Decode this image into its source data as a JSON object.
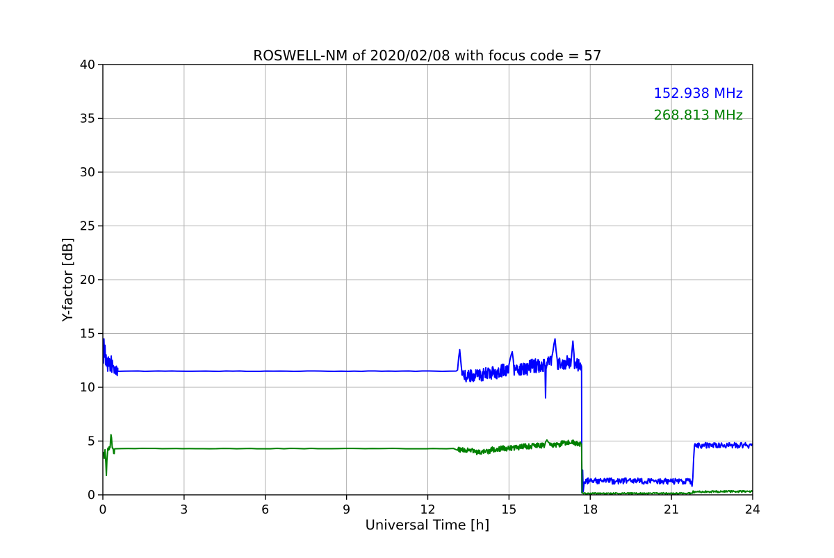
{
  "chart_data": {
    "type": "line",
    "title": "ROSWELL-NM of 2020/02/08 with focus code = 57",
    "xlabel": "Universal Time [h]",
    "ylabel": "Y-factor [dB]",
    "xlim": [
      0,
      24
    ],
    "ylim": [
      0,
      40
    ],
    "xticks": [
      0,
      3,
      6,
      9,
      12,
      15,
      18,
      21,
      24
    ],
    "yticks": [
      0,
      5,
      10,
      15,
      20,
      25,
      30,
      35,
      40
    ],
    "grid": true,
    "grid_color": "#b0b0b0",
    "axis_color": "#000000",
    "background_color": "#ffffff",
    "legend": {
      "position": "upper-right",
      "entries": [
        {
          "label": "152.938 MHz",
          "color": "#0000ff"
        },
        {
          "label": "268.813 MHz",
          "color": "#008000"
        }
      ]
    },
    "series": [
      {
        "name": "152.938 MHz",
        "color": "#0000ff",
        "seed": 12345,
        "line_width": 2,
        "segments": [
          {
            "points": [
              [
                0.02,
                12.2
              ],
              [
                0.04,
                14.5
              ],
              [
                0.06,
                12.8
              ],
              [
                0.08,
                13.9
              ],
              [
                0.1,
                12.1
              ],
              [
                0.12,
                13.0
              ]
            ]
          },
          {
            "x0": 0.12,
            "x1": 0.3,
            "y0": 12.3,
            "y1": 11.8,
            "noise": 0.75,
            "step": 0.01
          },
          {
            "points": [
              [
                0.31,
                12.9
              ],
              [
                0.33,
                11.4
              ],
              [
                0.35,
                12.5
              ]
            ]
          },
          {
            "x0": 0.36,
            "x1": 0.55,
            "y0": 11.8,
            "y1": 11.5,
            "noise": 0.45,
            "step": 0.01
          },
          {
            "x0": 0.55,
            "x1": 13.08,
            "y0": 11.5,
            "y1": 11.5,
            "noise": 0.02,
            "step": 0.25
          },
          {
            "points": [
              [
                13.1,
                11.6
              ],
              [
                13.14,
                12.7
              ],
              [
                13.18,
                13.5
              ],
              [
                13.22,
                12.4
              ],
              [
                13.26,
                11.4
              ]
            ]
          },
          {
            "x0": 13.26,
            "x1": 14.0,
            "y0": 11.0,
            "y1": 11.15,
            "noise": 0.55,
            "step": 0.012
          },
          {
            "x0": 14.0,
            "x1": 14.6,
            "y0": 11.2,
            "y1": 11.4,
            "noise": 0.6,
            "step": 0.012
          },
          {
            "x0": 14.6,
            "x1": 15.0,
            "y0": 11.5,
            "y1": 11.7,
            "noise": 0.6,
            "step": 0.012
          },
          {
            "points": [
              [
                15.04,
                12.6
              ],
              [
                15.08,
                13.0
              ],
              [
                15.12,
                13.3
              ],
              [
                15.16,
                12.5
              ]
            ]
          },
          {
            "x0": 15.18,
            "x1": 15.7,
            "y0": 11.6,
            "y1": 11.7,
            "noise": 0.6,
            "step": 0.012
          },
          {
            "x0": 15.7,
            "x1": 16.3,
            "y0": 11.9,
            "y1": 12.1,
            "noise": 0.65,
            "step": 0.012
          },
          {
            "points": [
              [
                16.33,
                11.9
              ],
              [
                16.35,
                9.0
              ],
              [
                16.37,
                12.0
              ]
            ]
          },
          {
            "x0": 16.38,
            "x1": 16.58,
            "y0": 12.2,
            "y1": 12.4,
            "noise": 0.6,
            "step": 0.012
          },
          {
            "points": [
              [
                16.62,
                13.3
              ],
              [
                16.66,
                14.0
              ],
              [
                16.7,
                14.5
              ],
              [
                16.74,
                13.4
              ],
              [
                16.78,
                12.6
              ]
            ]
          },
          {
            "x0": 16.8,
            "x1": 17.28,
            "y0": 12.2,
            "y1": 12.3,
            "noise": 0.65,
            "step": 0.012
          },
          {
            "points": [
              [
                17.32,
                13.2
              ],
              [
                17.36,
                14.3
              ],
              [
                17.4,
                13.1
              ]
            ]
          },
          {
            "x0": 17.42,
            "x1": 17.66,
            "y0": 12.2,
            "y1": 11.9,
            "noise": 0.6,
            "step": 0.012
          },
          {
            "points": [
              [
                17.68,
                11.9
              ],
              [
                17.69,
                0.2
              ],
              [
                17.72,
                2.3
              ],
              [
                17.74,
                0.3
              ],
              [
                17.78,
                1.2
              ]
            ]
          },
          {
            "x0": 17.8,
            "x1": 21.72,
            "y0": 1.3,
            "y1": 1.25,
            "noise": 0.28,
            "step": 0.02
          },
          {
            "points": [
              [
                21.74,
                1.1
              ],
              [
                21.76,
                0.8
              ],
              [
                21.79,
                1.6
              ],
              [
                21.82,
                3.4
              ],
              [
                21.85,
                4.6
              ]
            ]
          },
          {
            "x0": 21.87,
            "x1": 24.0,
            "y0": 4.6,
            "y1": 4.6,
            "noise": 0.26,
            "step": 0.02
          }
        ]
      },
      {
        "name": "268.813 MHz",
        "color": "#008000",
        "seed": 67890,
        "line_width": 2,
        "segments": [
          {
            "points": [
              [
                0.03,
                4.0
              ],
              [
                0.05,
                3.4
              ],
              [
                0.08,
                4.2
              ],
              [
                0.11,
                3.0
              ],
              [
                0.13,
                1.8
              ],
              [
                0.15,
                3.2
              ],
              [
                0.18,
                4.2
              ]
            ]
          },
          {
            "x0": 0.18,
            "x1": 0.27,
            "y0": 4.3,
            "y1": 4.4,
            "noise": 0.18,
            "step": 0.01
          },
          {
            "points": [
              [
                0.28,
                4.9
              ],
              [
                0.3,
                5.6
              ],
              [
                0.32,
                5.3
              ],
              [
                0.34,
                4.6
              ]
            ]
          },
          {
            "x0": 0.35,
            "x1": 0.43,
            "y0": 4.2,
            "y1": 4.0,
            "noise": 0.25,
            "step": 0.01
          },
          {
            "x0": 0.44,
            "x1": 13.08,
            "y0": 4.3,
            "y1": 4.3,
            "noise": 0.02,
            "step": 0.25
          },
          {
            "x0": 13.1,
            "x1": 13.8,
            "y0": 4.2,
            "y1": 4.1,
            "noise": 0.22,
            "step": 0.012
          },
          {
            "x0": 13.8,
            "x1": 14.3,
            "y0": 3.95,
            "y1": 4.05,
            "noise": 0.22,
            "step": 0.012
          },
          {
            "x0": 14.3,
            "x1": 15.0,
            "y0": 4.2,
            "y1": 4.35,
            "noise": 0.25,
            "step": 0.012
          },
          {
            "x0": 15.0,
            "x1": 15.6,
            "y0": 4.3,
            "y1": 4.5,
            "noise": 0.25,
            "step": 0.012
          },
          {
            "x0": 15.6,
            "x1": 16.3,
            "y0": 4.5,
            "y1": 4.6,
            "noise": 0.25,
            "step": 0.012
          },
          {
            "points": [
              [
                16.35,
                4.9
              ],
              [
                16.4,
                5.1
              ],
              [
                16.45,
                4.9
              ]
            ]
          },
          {
            "x0": 16.5,
            "x1": 16.9,
            "y0": 4.6,
            "y1": 4.65,
            "noise": 0.22,
            "step": 0.012
          },
          {
            "x0": 16.9,
            "x1": 17.4,
            "y0": 4.8,
            "y1": 4.9,
            "noise": 0.22,
            "step": 0.012
          },
          {
            "x0": 17.4,
            "x1": 17.66,
            "y0": 4.8,
            "y1": 4.7,
            "noise": 0.22,
            "step": 0.012
          },
          {
            "points": [
              [
                17.68,
                4.7
              ],
              [
                17.7,
                0.15
              ]
            ]
          },
          {
            "x0": 17.72,
            "x1": 21.78,
            "y0": 0.13,
            "y1": 0.15,
            "noise": 0.06,
            "step": 0.02
          },
          {
            "x0": 21.8,
            "x1": 24.0,
            "y0": 0.28,
            "y1": 0.32,
            "noise": 0.09,
            "step": 0.02
          }
        ]
      }
    ]
  }
}
